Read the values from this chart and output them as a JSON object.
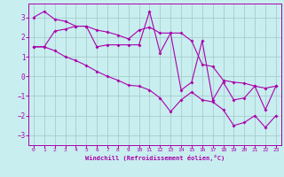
{
  "background_color": "#c8eef0",
  "grid_color": "#aacccc",
  "line_color": "#aa00aa",
  "spine_color": "#aa00aa",
  "xlim": [
    -0.5,
    23.5
  ],
  "ylim": [
    -3.5,
    3.7
  ],
  "xticks": [
    0,
    1,
    2,
    3,
    4,
    5,
    6,
    7,
    8,
    9,
    10,
    11,
    12,
    13,
    14,
    15,
    16,
    17,
    18,
    19,
    20,
    21,
    22,
    23
  ],
  "yticks": [
    -3,
    -2,
    -1,
    0,
    1,
    2,
    3
  ],
  "xlabel": "Windchill (Refroidissement éolien,°C)",
  "line1_x": [
    0,
    1,
    2,
    3,
    4,
    5,
    6,
    7,
    8,
    9,
    10,
    11,
    12,
    13,
    14,
    15,
    16,
    17,
    18,
    19,
    20,
    21,
    22,
    23
  ],
  "line1_y": [
    3.0,
    3.3,
    2.9,
    2.8,
    2.55,
    2.55,
    2.35,
    2.25,
    2.1,
    1.9,
    2.35,
    2.5,
    2.2,
    2.2,
    2.2,
    1.8,
    0.6,
    0.5,
    -0.2,
    -0.3,
    -0.35,
    -0.5,
    -0.6,
    -0.5
  ],
  "line2_x": [
    0,
    1,
    2,
    3,
    4,
    5,
    6,
    7,
    8,
    9,
    10,
    11,
    12,
    13,
    14,
    15,
    16,
    17,
    18,
    19,
    20,
    21,
    22,
    23
  ],
  "line2_y": [
    1.5,
    1.5,
    2.3,
    2.4,
    2.55,
    2.55,
    1.5,
    1.6,
    1.6,
    1.6,
    1.6,
    3.3,
    1.2,
    2.2,
    -0.7,
    -0.3,
    1.8,
    -1.2,
    -0.3,
    -1.2,
    -1.1,
    -0.5,
    -1.7,
    -0.5
  ],
  "line3_x": [
    0,
    1,
    2,
    3,
    4,
    5,
    6,
    7,
    8,
    9,
    10,
    11,
    12,
    13,
    14,
    15,
    16,
    17,
    18,
    19,
    20,
    21,
    22,
    23
  ],
  "line3_y": [
    1.5,
    1.5,
    1.3,
    1.0,
    0.8,
    0.55,
    0.25,
    0.0,
    -0.2,
    -0.45,
    -0.5,
    -0.7,
    -1.1,
    -1.8,
    -1.2,
    -0.8,
    -1.2,
    -1.3,
    -1.7,
    -2.5,
    -2.35,
    -2.0,
    -2.6,
    -2.0
  ]
}
